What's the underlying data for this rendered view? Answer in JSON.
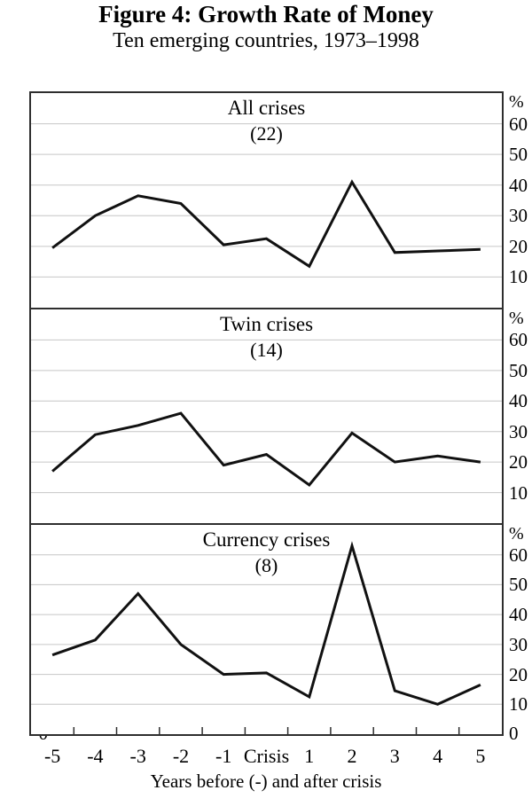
{
  "figure": {
    "title": "Figure 4: Growth Rate of Money",
    "subtitle": "Ten emerging countries, 1973–1998"
  },
  "chart_data": {
    "type": "line",
    "categories": [
      "-5",
      "-4",
      "-3",
      "-2",
      "-1",
      "Crisis",
      "1",
      "2",
      "3",
      "4",
      "5"
    ],
    "xlabel": "Years before (-) and after crisis",
    "percent_label": "%",
    "y_zero_label": "0",
    "ylim": [
      0,
      70
    ],
    "y_ticks": [
      60,
      50,
      40,
      30,
      20,
      10
    ],
    "grid": true,
    "legend_position": "none",
    "panels": [
      {
        "title": "All crises",
        "subtitle": "(22)",
        "values": [
          19.5,
          30,
          36.5,
          34,
          20.5,
          22.5,
          13.5,
          41,
          18,
          18.5,
          19
        ]
      },
      {
        "title": "Twin crises",
        "subtitle": "(14)",
        "values": [
          17,
          29,
          32,
          36,
          19,
          22.5,
          12.5,
          29.5,
          20,
          22,
          20
        ]
      },
      {
        "title": "Currency crises",
        "subtitle": "(8)",
        "values": [
          26.5,
          31.5,
          47,
          30,
          20,
          20.5,
          12.5,
          63,
          14.5,
          10,
          16.5
        ]
      }
    ]
  },
  "colors": {
    "line": "#111111",
    "grid": "#c6c6c6",
    "axis": "#2e2e2e",
    "text": "#000000"
  }
}
